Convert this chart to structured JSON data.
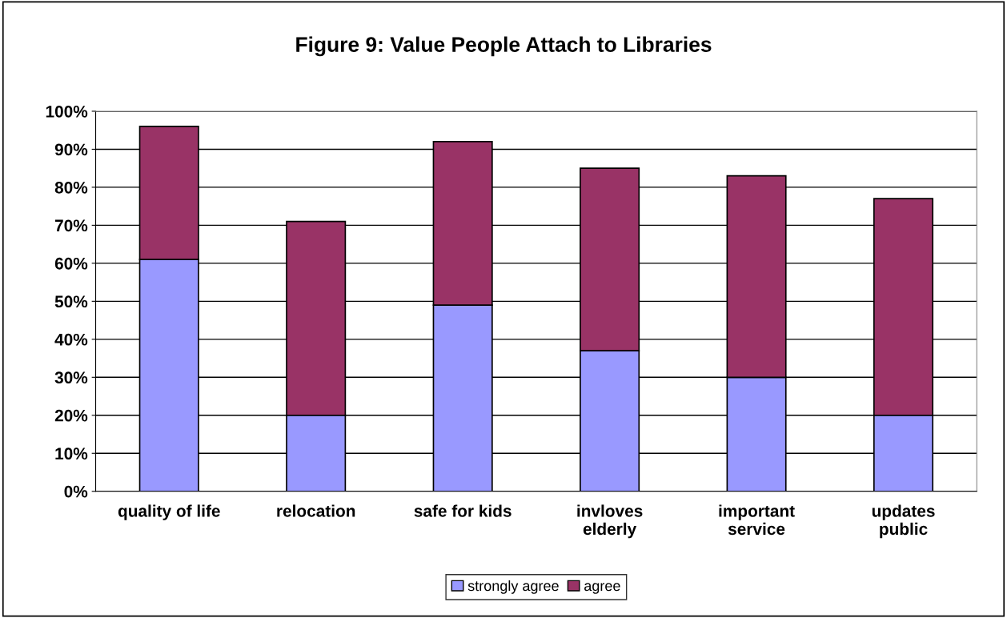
{
  "chart_data": {
    "type": "bar",
    "title": "Figure 9: Value People Attach to Libraries",
    "categories": [
      "quality of life",
      "relocation",
      "safe for kids",
      "invloves\nelderly",
      "important\nservice",
      "updates\npublic"
    ],
    "stacked": true,
    "series": [
      {
        "name": "strongly agree",
        "color": "#9999ff",
        "values": [
          61,
          20,
          49,
          37,
          30,
          20
        ]
      },
      {
        "name": "agree",
        "color": "#993366",
        "values": [
          35,
          51,
          43,
          48,
          53,
          57
        ]
      }
    ],
    "ylim": [
      0,
      100
    ],
    "yticks": [
      {
        "value": 0,
        "label": "0%"
      },
      {
        "value": 10,
        "label": "10%"
      },
      {
        "value": 20,
        "label": "20%"
      },
      {
        "value": 30,
        "label": "30%"
      },
      {
        "value": 40,
        "label": "40%"
      },
      {
        "value": 50,
        "label": "50%"
      },
      {
        "value": 60,
        "label": "60%"
      },
      {
        "value": 70,
        "label": "70%"
      },
      {
        "value": 80,
        "label": "80%"
      },
      {
        "value": 90,
        "label": "90%"
      },
      {
        "value": 100,
        "label": "100%"
      }
    ],
    "grid": "y",
    "legend": "bottom"
  }
}
